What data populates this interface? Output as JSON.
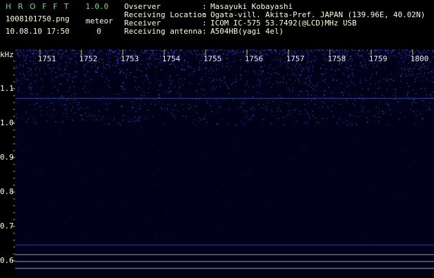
{
  "header": {
    "title": "H R O F F T",
    "version": "1.0.0",
    "filename": "1008101750.png",
    "datetime": "10.08.10 17:50",
    "meteor_label": "meteor",
    "meteor_count": "0"
  },
  "info": [
    {
      "label": "Ovserver",
      "value": "Masayuki Kobayashi"
    },
    {
      "label": "Receiving Location",
      "value": "Ogata-vill. Akita-Pref. JAPAN (139.96E, 40.02N)"
    },
    {
      "label": "Receiver",
      "value": "ICOM IC-575 53.7492(@LCD)MHz USB"
    },
    {
      "label": "Receiving antenna",
      "value": "A504HB(yagi 4el)"
    }
  ],
  "separator": ":",
  "spectrogram": {
    "y_unit": "kHz",
    "y_labels": [
      "1.1",
      "1.0",
      "0.9",
      "0.8",
      "0.7",
      "0.6"
    ],
    "x_labels": [
      "1751",
      "1752",
      "1753",
      "1754",
      "1755",
      "1756",
      "1757",
      "1758",
      "1759",
      "1800"
    ]
  }
}
